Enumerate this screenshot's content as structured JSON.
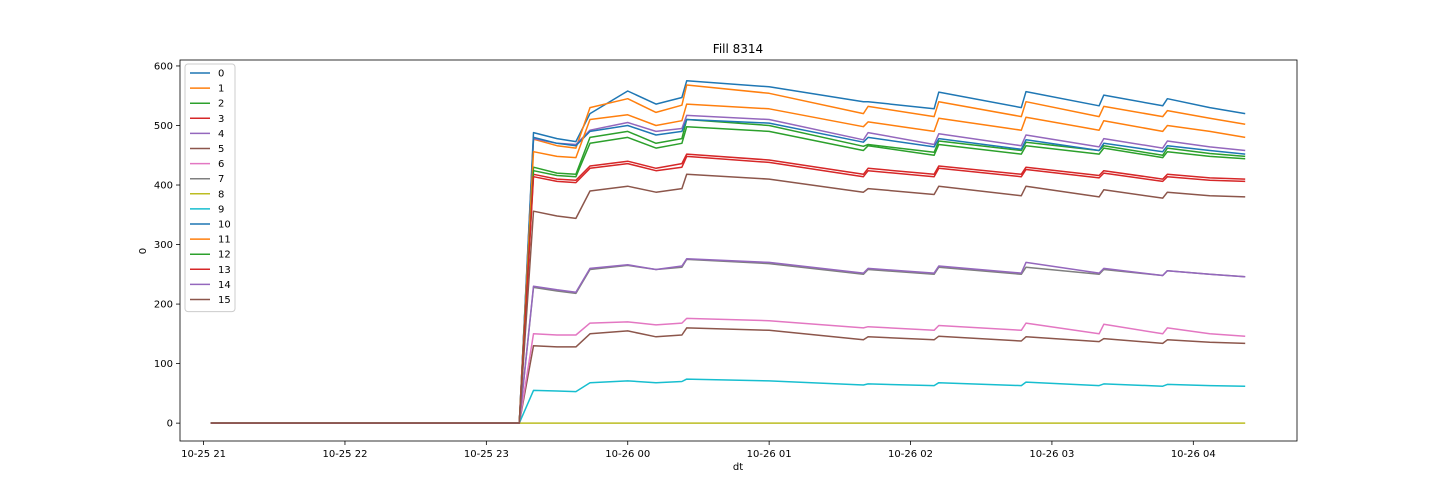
{
  "chart_data": {
    "type": "line",
    "title": "Fill 8314",
    "xlabel": "dt",
    "ylabel": "0",
    "ylim": [
      -30,
      610
    ],
    "xlim": [
      "2025-10-25 20:50",
      "2025-10-26 04:44"
    ],
    "x_ticks": [
      {
        "value": "2025-10-25 21:00",
        "label": "10-25 21"
      },
      {
        "value": "2025-10-25 22:00",
        "label": "10-25 22"
      },
      {
        "value": "2025-10-25 23:00",
        "label": "10-25 23"
      },
      {
        "value": "2025-10-26 00:00",
        "label": "10-26 00"
      },
      {
        "value": "2025-10-26 01:00",
        "label": "10-26 01"
      },
      {
        "value": "2025-10-26 02:00",
        "label": "10-26 02"
      },
      {
        "value": "2025-10-26 03:00",
        "label": "10-26 03"
      },
      {
        "value": "2025-10-26 04:00",
        "label": "10-26 04"
      }
    ],
    "y_ticks": [
      {
        "value": 0,
        "label": "0"
      },
      {
        "value": 100,
        "label": "100"
      },
      {
        "value": 200,
        "label": "200"
      },
      {
        "value": 300,
        "label": "300"
      },
      {
        "value": 400,
        "label": "400"
      },
      {
        "value": 500,
        "label": "500"
      },
      {
        "value": 600,
        "label": "600"
      }
    ],
    "grid": false,
    "legend_position": "upper-left",
    "x_segments": [
      "2025-10-25 21:03",
      "2025-10-25 23:14",
      "2025-10-25 23:20",
      "2025-10-25 23:30",
      "2025-10-25 23:38",
      "2025-10-25 23:44",
      "2025-10-26 00:00",
      "2025-10-26 00:12",
      "2025-10-26 00:23",
      "2025-10-26 00:25",
      "2025-10-26 01:00",
      "2025-10-26 01:40",
      "2025-10-26 01:42",
      "2025-10-26 02:10",
      "2025-10-26 02:12",
      "2025-10-26 02:47",
      "2025-10-26 02:49",
      "2025-10-26 03:20",
      "2025-10-26 03:22",
      "2025-10-26 03:47",
      "2025-10-26 03:49",
      "2025-10-26 04:07",
      "2025-10-26 04:22"
    ],
    "series": [
      {
        "name": "0",
        "color": "#1f77b4",
        "values": [
          0,
          0,
          488,
          478,
          473,
          520,
          558,
          536,
          547,
          575,
          565,
          540,
          540,
          528,
          556,
          530,
          557,
          533,
          551,
          533,
          545,
          530,
          520
        ]
      },
      {
        "name": "1",
        "color": "#ff7f0e",
        "values": [
          0,
          0,
          477,
          466,
          462,
          530,
          545,
          522,
          534,
          568,
          554,
          520,
          532,
          515,
          540,
          515,
          540,
          515,
          532,
          515,
          525,
          512,
          502
        ]
      },
      {
        "name": "2",
        "color": "#2ca02c",
        "values": [
          0,
          0,
          430,
          420,
          418,
          480,
          490,
          470,
          478,
          510,
          500,
          465,
          468,
          455,
          474,
          458,
          472,
          458,
          466,
          450,
          462,
          453,
          448
        ]
      },
      {
        "name": "3",
        "color": "#d62728",
        "values": [
          0,
          0,
          418,
          410,
          408,
          432,
          440,
          428,
          436,
          452,
          442,
          418,
          428,
          418,
          432,
          418,
          430,
          416,
          424,
          410,
          418,
          412,
          410
        ]
      },
      {
        "name": "4",
        "color": "#9467bd",
        "values": [
          0,
          0,
          478,
          470,
          468,
          492,
          505,
          490,
          495,
          517,
          510,
          476,
          488,
          468,
          486,
          466,
          484,
          464,
          478,
          462,
          474,
          464,
          458
        ]
      },
      {
        "name": "5",
        "color": "#8c564b",
        "values": [
          0,
          0,
          130,
          128,
          128,
          150,
          155,
          145,
          148,
          160,
          156,
          140,
          145,
          140,
          146,
          138,
          145,
          137,
          142,
          134,
          140,
          136,
          134
        ]
      },
      {
        "name": "6",
        "color": "#e377c2",
        "values": [
          0,
          0,
          150,
          148,
          148,
          168,
          170,
          165,
          168,
          176,
          172,
          160,
          162,
          156,
          164,
          156,
          168,
          150,
          166,
          150,
          160,
          150,
          146
        ]
      },
      {
        "name": "7",
        "color": "#7f7f7f",
        "values": [
          0,
          0,
          228,
          222,
          218,
          258,
          265,
          258,
          262,
          275,
          268,
          250,
          258,
          250,
          262,
          250,
          262,
          250,
          258,
          248,
          256,
          250,
          246
        ]
      },
      {
        "name": "8",
        "color": "#bcbd22",
        "values": [
          0,
          0,
          0,
          0,
          0,
          0,
          0,
          0,
          0,
          0,
          0,
          0,
          0,
          0,
          0,
          0,
          0,
          0,
          0,
          0,
          0,
          0,
          0
        ]
      },
      {
        "name": "9",
        "color": "#17becf",
        "values": [
          0,
          0,
          55,
          54,
          53,
          68,
          71,
          68,
          70,
          74,
          71,
          64,
          66,
          63,
          68,
          63,
          69,
          63,
          66,
          62,
          65,
          63,
          62
        ]
      },
      {
        "name": "10",
        "color": "#1f77b4",
        "values": [
          0,
          0,
          480,
          470,
          466,
          490,
          500,
          484,
          490,
          510,
          504,
          472,
          480,
          464,
          478,
          460,
          476,
          458,
          470,
          456,
          466,
          458,
          452
        ]
      },
      {
        "name": "11",
        "color": "#ff7f0e",
        "values": [
          0,
          0,
          456,
          448,
          446,
          510,
          518,
          500,
          508,
          536,
          528,
          498,
          506,
          490,
          512,
          492,
          514,
          492,
          508,
          490,
          500,
          490,
          480
        ]
      },
      {
        "name": "12",
        "color": "#2ca02c",
        "values": [
          0,
          0,
          424,
          416,
          414,
          470,
          480,
          462,
          470,
          498,
          490,
          458,
          466,
          450,
          468,
          452,
          466,
          452,
          462,
          446,
          456,
          448,
          444
        ]
      },
      {
        "name": "13",
        "color": "#d62728",
        "values": [
          0,
          0,
          414,
          406,
          404,
          428,
          436,
          424,
          430,
          448,
          438,
          414,
          424,
          414,
          428,
          414,
          426,
          412,
          420,
          406,
          414,
          408,
          406
        ]
      },
      {
        "name": "14",
        "color": "#9467bd",
        "values": [
          0,
          0,
          230,
          224,
          220,
          260,
          266,
          258,
          264,
          276,
          270,
          252,
          260,
          252,
          264,
          252,
          270,
          252,
          260,
          248,
          256,
          250,
          246
        ]
      },
      {
        "name": "15",
        "color": "#8c564b",
        "values": [
          0,
          0,
          356,
          348,
          344,
          390,
          398,
          388,
          394,
          418,
          410,
          388,
          394,
          384,
          398,
          382,
          398,
          380,
          392,
          378,
          388,
          382,
          380
        ]
      }
    ]
  }
}
